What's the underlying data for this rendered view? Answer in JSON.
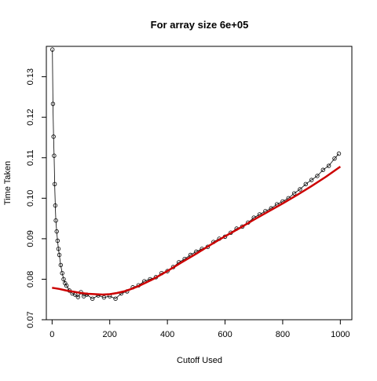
{
  "chart_data": {
    "type": "scatter",
    "title": "For array size 6e+05",
    "xlabel": "Cutoff Used",
    "ylabel": "Time Taken",
    "xlim": [
      -20,
      1040
    ],
    "ylim": [
      0.07,
      0.1375
    ],
    "x_ticks": [
      0,
      200,
      400,
      600,
      800,
      1000
    ],
    "y_ticks": [
      0.07,
      0.08,
      0.09,
      0.1,
      0.11,
      0.12,
      0.13
    ],
    "x_tick_labels": [
      "0",
      "200",
      "400",
      "600",
      "800",
      "1000"
    ],
    "y_tick_labels": [
      "0.07",
      "0.08",
      "0.09",
      "0.10",
      "0.11",
      "0.12",
      "0.13"
    ],
    "grid": false,
    "legend": "none",
    "series": [
      {
        "kind": "points-connected",
        "color": "#000000",
        "x": [
          1,
          3,
          5,
          7,
          9,
          11,
          13,
          16,
          19,
          22,
          25,
          30,
          35,
          40,
          45,
          50,
          60,
          70,
          80,
          90,
          100,
          110,
          120,
          140,
          160,
          180,
          200,
          220,
          240,
          260,
          280,
          300,
          320,
          340,
          360,
          380,
          400,
          420,
          440,
          460,
          480,
          500,
          520,
          540,
          560,
          580,
          600,
          620,
          640,
          660,
          680,
          700,
          720,
          740,
          760,
          780,
          800,
          820,
          840,
          860,
          880,
          900,
          920,
          940,
          960,
          980,
          995
        ],
        "y": [
          0.1367,
          0.1233,
          0.1152,
          0.1105,
          0.1035,
          0.0982,
          0.0945,
          0.0918,
          0.0895,
          0.0875,
          0.086,
          0.0835,
          0.0815,
          0.08,
          0.079,
          0.0784,
          0.0772,
          0.0765,
          0.0762,
          0.0756,
          0.0768,
          0.0758,
          0.0762,
          0.0752,
          0.076,
          0.0755,
          0.0758,
          0.0752,
          0.0765,
          0.077,
          0.078,
          0.0785,
          0.0795,
          0.08,
          0.0805,
          0.0815,
          0.082,
          0.083,
          0.0842,
          0.085,
          0.086,
          0.0868,
          0.0875,
          0.088,
          0.0892,
          0.09,
          0.0905,
          0.0915,
          0.0925,
          0.093,
          0.094,
          0.0952,
          0.096,
          0.0968,
          0.0975,
          0.0985,
          0.0992,
          0.1,
          0.1012,
          0.1022,
          0.1035,
          0.1045,
          0.1055,
          0.107,
          0.108,
          0.1098,
          0.111
        ]
      },
      {
        "kind": "smooth-fit",
        "color": "#cc0000",
        "x": [
          0,
          25,
          50,
          75,
          100,
          125,
          150,
          175,
          200,
          225,
          250,
          275,
          300,
          350,
          400,
          450,
          500,
          550,
          600,
          650,
          700,
          750,
          800,
          850,
          900,
          950,
          1000
        ],
        "y": [
          0.0779,
          0.0776,
          0.0772,
          0.0769,
          0.0766,
          0.0764,
          0.0763,
          0.0762,
          0.0763,
          0.0766,
          0.077,
          0.0776,
          0.0783,
          0.08,
          0.082,
          0.0842,
          0.0863,
          0.0885,
          0.0906,
          0.0926,
          0.0947,
          0.0967,
          0.0987,
          0.1008,
          0.103,
          0.1053,
          0.1078
        ]
      }
    ]
  }
}
